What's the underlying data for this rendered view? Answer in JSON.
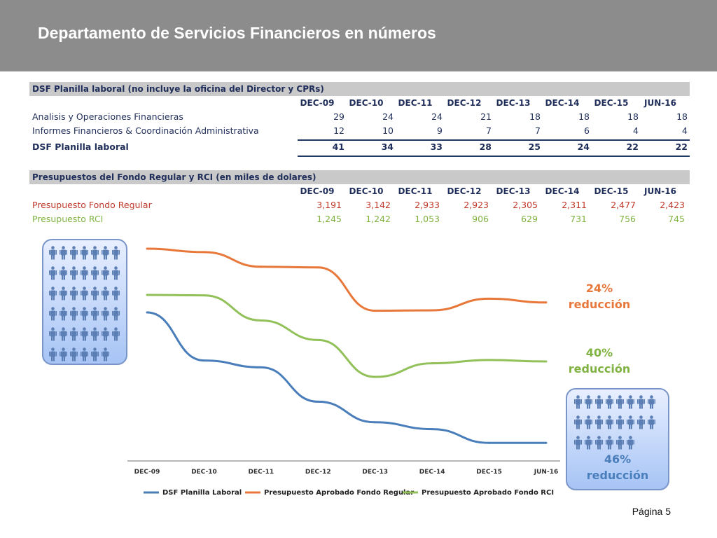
{
  "header": {
    "title": "Departamento de Servicios Financieros en números"
  },
  "staff_table": {
    "title": "DSF Planilla laboral (no incluye la oficina del Director y CPRs)",
    "columns": [
      "DEC-09",
      "DEC-10",
      "DEC-11",
      "DEC-12",
      "DEC-13",
      "DEC-14",
      "DEC-15",
      "JUN-16"
    ],
    "rows": [
      {
        "label": "Analisis y Operaciones Financieras",
        "values": [
          "29",
          "24",
          "24",
          "21",
          "18",
          "18",
          "18",
          "18"
        ]
      },
      {
        "label": "Informes Financieros & Coordinación Administrativa",
        "values": [
          "12",
          "10",
          "9",
          "7",
          "7",
          "6",
          "4",
          "4"
        ]
      }
    ],
    "total": {
      "label": "DSF Planilla laboral",
      "values": [
        "41",
        "34",
        "33",
        "28",
        "25",
        "24",
        "22",
        "22"
      ]
    }
  },
  "budget_table": {
    "title": "Presupuestos del Fondo Regular y RCI (en miles de dolares)",
    "columns": [
      "DEC-09",
      "DEC-10",
      "DEC-11",
      "DEC-12",
      "DEC-13",
      "DEC-14",
      "DEC-15",
      "JUN-16"
    ],
    "rows": [
      {
        "label": "Presupuesto Fondo Regular",
        "values": [
          "3,191",
          "3,142",
          "2,933",
          "2,923",
          "2,305",
          "2,311",
          "2,477",
          "2,423"
        ]
      },
      {
        "label": "Presupuesto RCI",
        "values": [
          "1,245",
          "1,242",
          "1,053",
          "906",
          "629",
          "731",
          "756",
          "745"
        ]
      }
    ]
  },
  "chart_data": {
    "type": "line",
    "categories": [
      "DEC-09",
      "DEC-10",
      "DEC-11",
      "DEC-12",
      "DEC-13",
      "DEC-14",
      "DEC-15",
      "JUN-16"
    ],
    "series": [
      {
        "name": "DSF Planilla Laboral",
        "color": "#4a7ebb",
        "values": [
          41,
          34,
          33,
          28,
          25,
          24,
          22,
          22
        ]
      },
      {
        "name": "Presupuesto Aprobado Fondo Regular",
        "color": "#e8773a",
        "values": [
          3191,
          3142,
          2933,
          2923,
          2305,
          2311,
          2477,
          2423
        ]
      },
      {
        "name": "Presupuesto Aprobado Fondo RCI",
        "color": "#92c15a",
        "values": [
          1245,
          1242,
          1053,
          906,
          629,
          731,
          756,
          745
        ]
      }
    ],
    "legend_position": "bottom",
    "grid": false
  },
  "annotations": [
    {
      "pct": "24%",
      "text": "reducción",
      "color": "#e8773a"
    },
    {
      "pct": "40%",
      "text": "reducción",
      "color": "#7fb241"
    },
    {
      "pct": "46%",
      "text": "reducción",
      "color": "#4a7ebb"
    }
  ],
  "people_left_count": 41,
  "people_right_count": 22,
  "icons": {
    "person": "person-icon"
  },
  "page": {
    "label": "Página 5"
  }
}
